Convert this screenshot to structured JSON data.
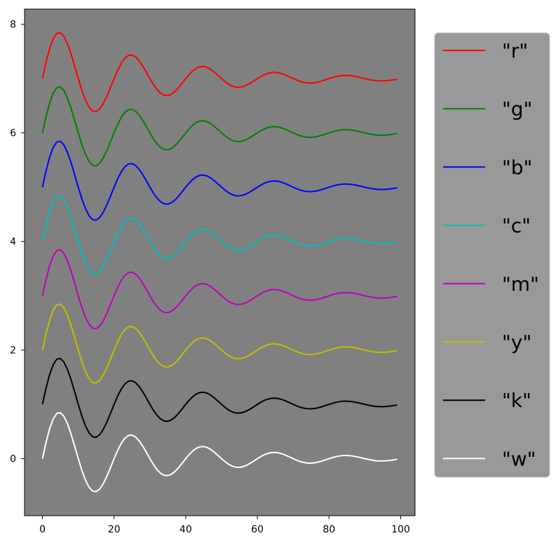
{
  "chart_data": {
    "type": "line",
    "title": "",
    "xlabel": "",
    "ylabel": "",
    "xlim": [
      -5,
      104
    ],
    "ylim": [
      -1.05,
      8.28
    ],
    "x_ticks": [
      0,
      20,
      40,
      60,
      80,
      100
    ],
    "y_ticks": [
      0,
      2,
      4,
      6,
      8
    ],
    "x_tick_labels": [
      "0",
      "20",
      "40",
      "60",
      "80",
      "100"
    ],
    "y_tick_labels": [
      "0",
      "2",
      "4",
      "6",
      "8"
    ],
    "grid": false,
    "legend_position": "outside-right",
    "plot_background": "#808080",
    "legend_background": "#999999",
    "function": "offset + exp(-x/30) * sin(pi * x / 10), x = 0..99",
    "x_range": [
      0,
      99
    ],
    "series": [
      {
        "name": "\"r\"",
        "color": "#ff0000",
        "offset": 7
      },
      {
        "name": "\"g\"",
        "color": "#008000",
        "offset": 6
      },
      {
        "name": "\"b\"",
        "color": "#0000ff",
        "offset": 5
      },
      {
        "name": "\"c\"",
        "color": "#00bfbf",
        "offset": 4
      },
      {
        "name": "\"m\"",
        "color": "#bf00bf",
        "offset": 3
      },
      {
        "name": "\"y\"",
        "color": "#bfbf00",
        "offset": 2
      },
      {
        "name": "\"k\"",
        "color": "#000000",
        "offset": 1
      },
      {
        "name": "\"w\"",
        "color": "#ffffff",
        "offset": 0
      }
    ]
  }
}
